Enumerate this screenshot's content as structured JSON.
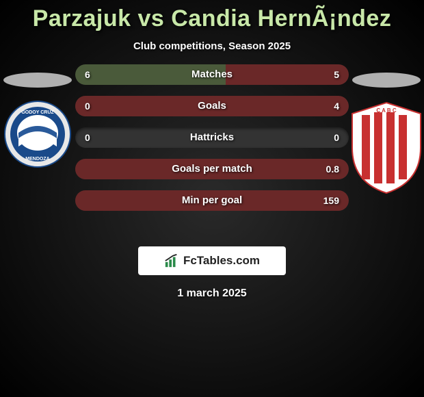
{
  "title": "Parzajuk vs Candia HernÃ¡ndez",
  "subtitle": "Club competitions, Season 2025",
  "date": "1 march 2025",
  "brand": "FcTables.com",
  "colors": {
    "left_fill": "#4a5a3a",
    "right_fill": "#6a2828",
    "bar_bg": "#333333",
    "title_color": "#c8e8a8",
    "text_white": "#ffffff"
  },
  "left_club": {
    "name": "Godoy Cruz",
    "badge_colors": {
      "outer": "#ffffff",
      "mid": "#1a4a8a",
      "inner": "#2a5a9a"
    }
  },
  "right_club": {
    "name": "Barracas Central",
    "badge_colors": {
      "bg": "#ffffff",
      "stripe": "#c83030"
    }
  },
  "stats": [
    {
      "label": "Matches",
      "left_val": "6",
      "right_val": "5",
      "left_pct": 55,
      "right_pct": 45
    },
    {
      "label": "Goals",
      "left_val": "0",
      "right_val": "4",
      "left_pct": 0,
      "right_pct": 100
    },
    {
      "label": "Hattricks",
      "left_val": "0",
      "right_val": "0",
      "left_pct": 0,
      "right_pct": 0
    },
    {
      "label": "Goals per match",
      "left_val": "",
      "right_val": "0.8",
      "left_pct": 0,
      "right_pct": 100
    },
    {
      "label": "Min per goal",
      "left_val": "",
      "right_val": "159",
      "left_pct": 0,
      "right_pct": 100
    }
  ]
}
